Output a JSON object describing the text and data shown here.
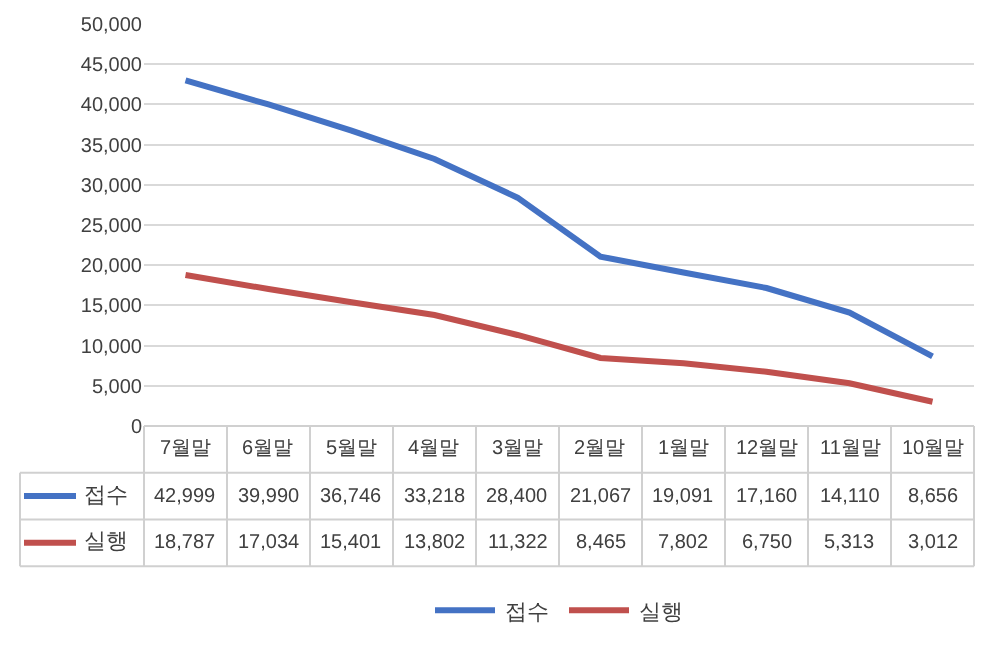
{
  "chart_data": {
    "type": "line",
    "categories": [
      "7월말",
      "6월말",
      "5월말",
      "4월말",
      "3월말",
      "2월말",
      "1월말",
      "12월말",
      "11월말",
      "10월말"
    ],
    "series": [
      {
        "name": "접수",
        "color": "#4472c4",
        "values": [
          42999,
          39990,
          36746,
          33218,
          28400,
          21067,
          19091,
          17160,
          14110,
          8656
        ],
        "value_labels": [
          "42,999",
          "39,990",
          "36,746",
          "33,218",
          "28,400",
          "21,067",
          "19,091",
          "17,160",
          "14,110",
          "8,656"
        ]
      },
      {
        "name": "실행",
        "color": "#c0504d",
        "values": [
          18787,
          17034,
          15401,
          13802,
          11322,
          8465,
          7802,
          6750,
          5313,
          3012
        ],
        "value_labels": [
          "18,787",
          "17,034",
          "15,401",
          "13,802",
          "11,322",
          "8,465",
          "7,802",
          "6,750",
          "5,313",
          "3,012"
        ]
      }
    ],
    "ylim": [
      0,
      50000
    ],
    "yticks": [
      {
        "value": 0,
        "label": "0"
      },
      {
        "value": 5000,
        "label": "5,000"
      },
      {
        "value": 10000,
        "label": "10,000"
      },
      {
        "value": 15000,
        "label": "15,000"
      },
      {
        "value": 20000,
        "label": "20,000"
      },
      {
        "value": 25000,
        "label": "25,000"
      },
      {
        "value": 30000,
        "label": "30,000"
      },
      {
        "value": 35000,
        "label": "35,000"
      },
      {
        "value": 40000,
        "label": "40,000"
      },
      {
        "value": 45000,
        "label": "45,000"
      },
      {
        "value": 50000,
        "label": "50,000"
      }
    ],
    "grid": "y",
    "legend": "bottom",
    "marker": "none",
    "line_style": "solid"
  }
}
